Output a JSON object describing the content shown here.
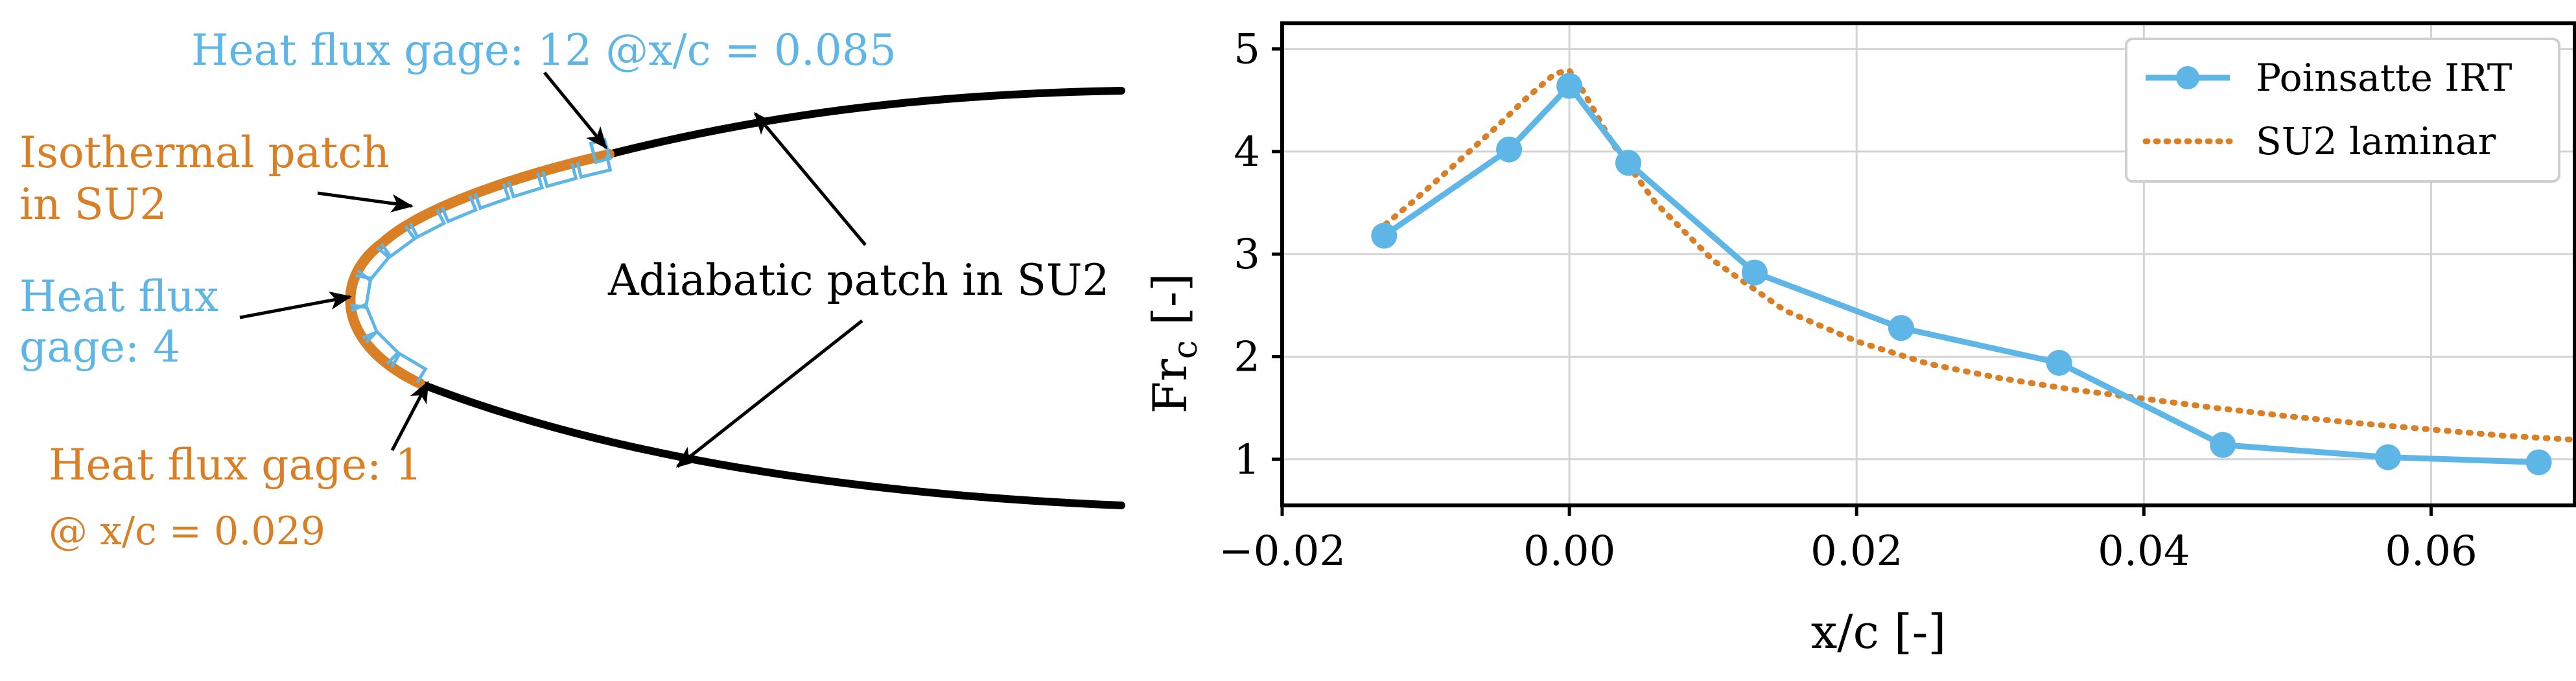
{
  "colors": {
    "blue": "#5DB6E6",
    "orange": "#D97F25",
    "black": "#000000",
    "grid": "#d4d4d4"
  },
  "schematic": {
    "label_gage12": "Heat flux gage: 12 @x/c = 0.085",
    "label_isothermal_1": "Isothermal patch",
    "label_isothermal_2": "in SU2",
    "label_gage4_1": "Heat flux",
    "label_gage4_2": "gage: 4",
    "label_adiabatic": "Adiabatic patch in SU2",
    "label_gage1_1": "Heat flux gage: 1",
    "label_gage1_2": "@ x/c = 0.029"
  },
  "chart_data": {
    "type": "line",
    "xlabel": "x/c [-]",
    "ylabel_main": "Fr",
    "ylabel_sub": "c",
    "ylabel_unit": " [-]",
    "xlim": [
      -0.02,
      0.07
    ],
    "ylim": [
      0.55,
      5.25
    ],
    "xticks": [
      -0.02,
      0.0,
      0.02,
      0.04,
      0.06
    ],
    "xtick_labels": [
      "−0.02",
      "0.00",
      "0.02",
      "0.04",
      "0.06"
    ],
    "yticks": [
      1,
      2,
      3,
      4,
      5
    ],
    "ytick_labels": [
      "1",
      "2",
      "3",
      "4",
      "5"
    ],
    "grid": true,
    "legend_position": "top-right",
    "series": [
      {
        "name": "Poinsatte IRT",
        "style": "solid-markers",
        "color": "#5DB6E6",
        "x": [
          -0.0129,
          -0.0042,
          0.0,
          0.0041,
          0.0129,
          0.0231,
          0.0341,
          0.0455,
          0.057,
          0.0675
        ],
        "y": [
          3.18,
          4.02,
          4.64,
          3.89,
          2.82,
          2.28,
          1.94,
          1.14,
          1.02,
          0.97
        ]
      },
      {
        "name": "SU2 laminar",
        "style": "dotted",
        "color": "#D97F25",
        "x": [
          -0.0134,
          -0.011,
          -0.008,
          -0.005,
          -0.003,
          -0.001,
          0.0,
          0.001,
          0.003,
          0.006,
          0.01,
          0.015,
          0.02,
          0.025,
          0.03,
          0.035,
          0.04,
          0.045,
          0.05,
          0.055,
          0.06,
          0.065,
          0.07
        ],
        "y": [
          3.22,
          3.5,
          3.87,
          4.25,
          4.52,
          4.76,
          4.79,
          4.58,
          4.08,
          3.5,
          2.94,
          2.45,
          2.15,
          1.93,
          1.79,
          1.68,
          1.59,
          1.5,
          1.42,
          1.35,
          1.29,
          1.23,
          1.19
        ]
      }
    ]
  }
}
